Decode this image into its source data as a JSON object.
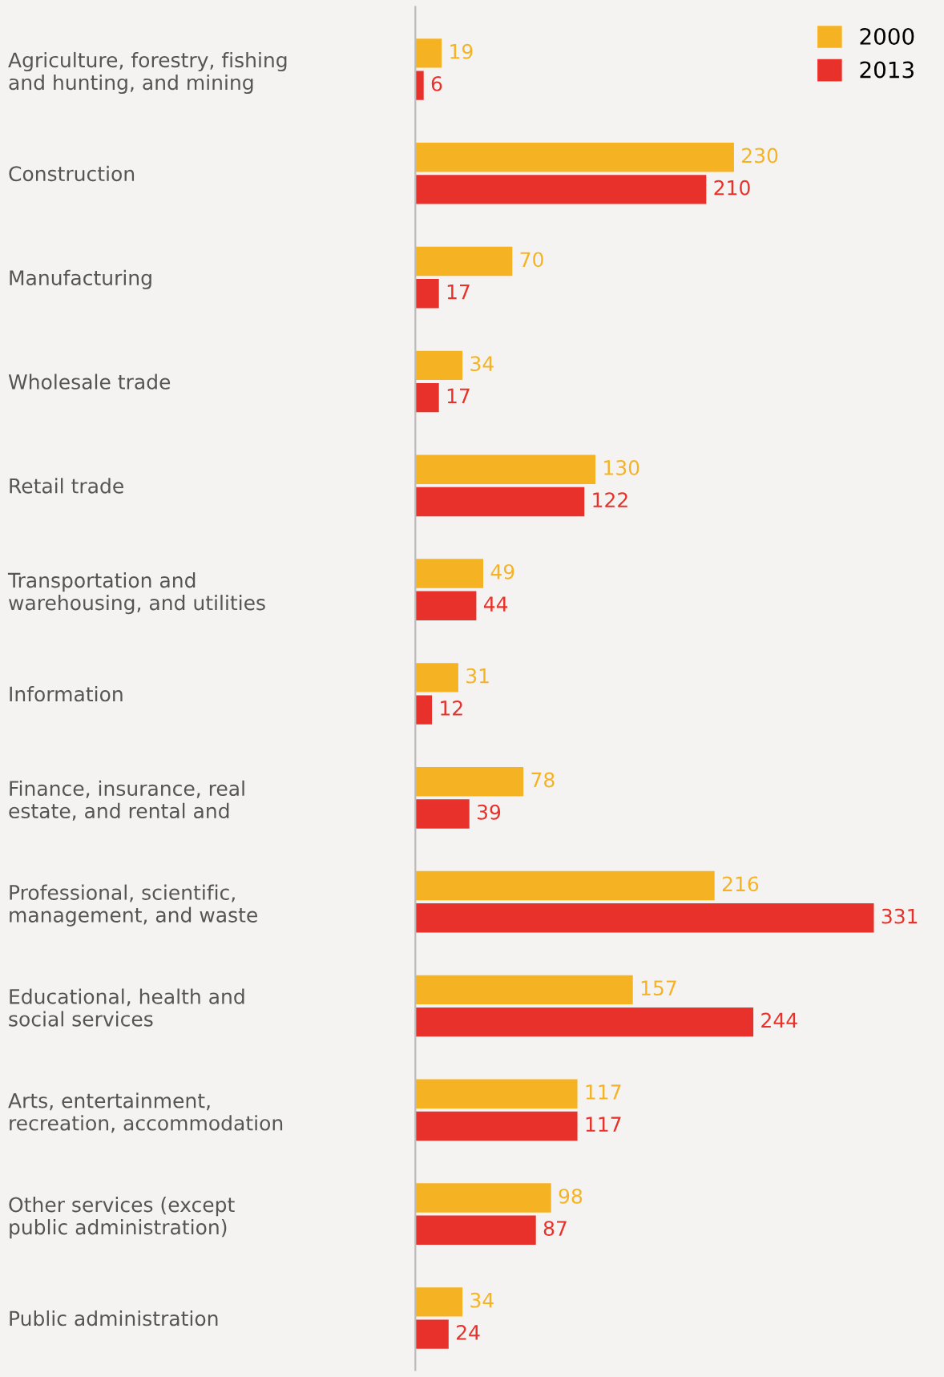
{
  "chart_data": {
    "type": "bar",
    "orientation": "horizontal",
    "categories": [
      "Agriculture, forestry, fishing\nand hunting, and mining",
      "Construction",
      "Manufacturing",
      "Wholesale trade",
      "Retail trade",
      "Transportation and\nwarehousing, and utilities",
      "Information",
      "Finance, insurance, real\nestate, and rental and",
      "Professional, scientific,\nmanagement, and waste",
      "Educational, health and\nsocial services",
      "Arts, entertainment,\nrecreation, accommodation",
      "Other services (except\npublic administration)",
      "Public administration"
    ],
    "series": [
      {
        "name": "2000",
        "color": "#f5b324",
        "values": [
          19,
          230,
          70,
          34,
          130,
          49,
          31,
          78,
          216,
          157,
          117,
          98,
          34
        ]
      },
      {
        "name": "2013",
        "color": "#e8312a",
        "values": [
          6,
          210,
          17,
          17,
          122,
          44,
          12,
          39,
          331,
          244,
          117,
          87,
          24
        ]
      }
    ],
    "data_labels": true,
    "legend": "top right",
    "grid": false,
    "tick_labels": "y"
  }
}
